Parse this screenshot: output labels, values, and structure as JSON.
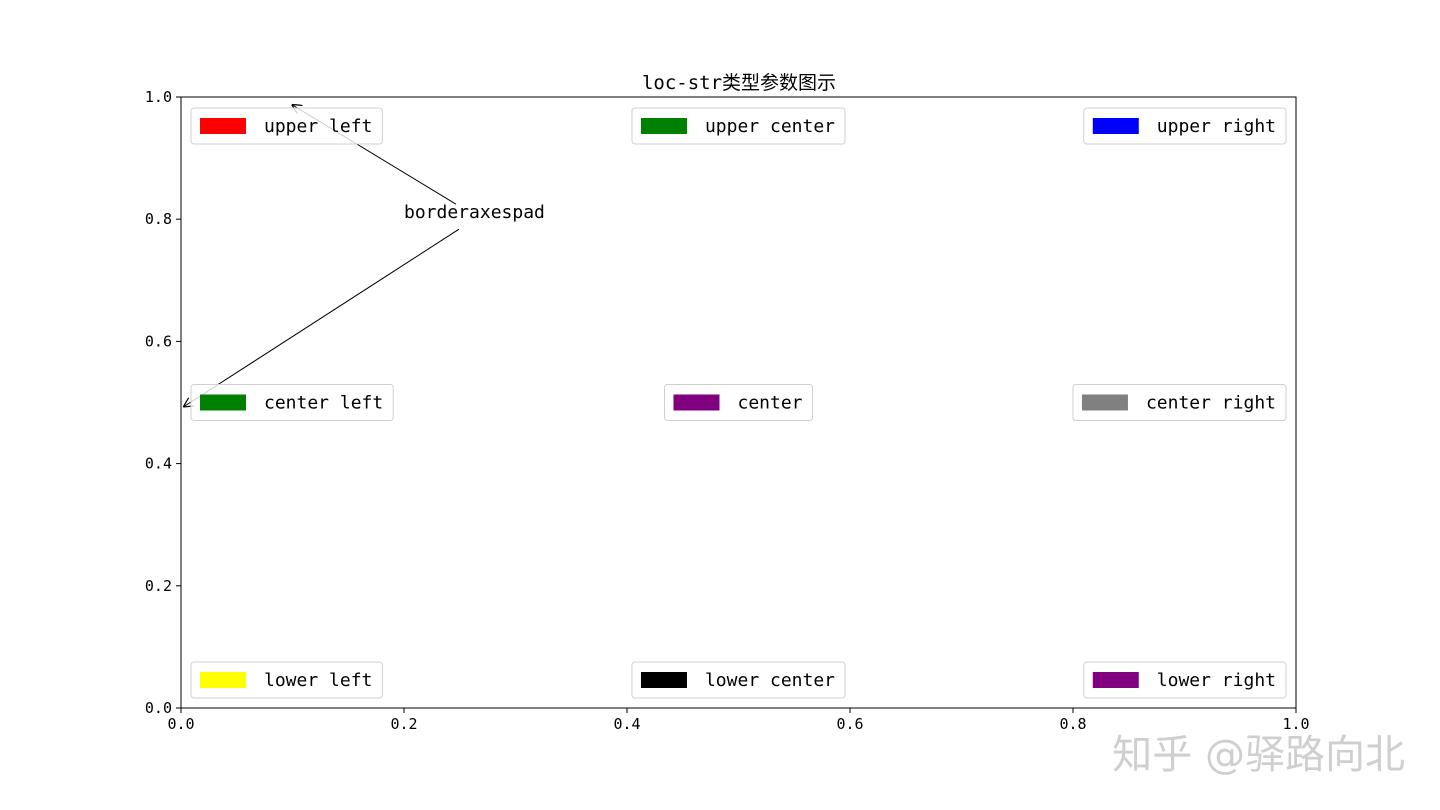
{
  "chart_data": {
    "type": "legend-demo",
    "title": "loc-str类型参数图示",
    "xlim": [
      0.0,
      1.0
    ],
    "ylim": [
      0.0,
      1.0
    ],
    "x_ticks": [
      "0.0",
      "0.2",
      "0.4",
      "0.6",
      "0.8",
      "1.0"
    ],
    "y_ticks": [
      "0.0",
      "0.2",
      "0.4",
      "0.6",
      "0.8",
      "1.0"
    ],
    "grid": false,
    "legends": [
      {
        "loc": "upper left",
        "label": "upper left",
        "color": "#ff0000"
      },
      {
        "loc": "upper center",
        "label": "upper center",
        "color": "#008000"
      },
      {
        "loc": "upper right",
        "label": "upper right",
        "color": "#0000ff"
      },
      {
        "loc": "center left",
        "label": "center left",
        "color": "#008000"
      },
      {
        "loc": "center",
        "label": "center",
        "color": "#800080"
      },
      {
        "loc": "center right",
        "label": "center right",
        "color": "#808080"
      },
      {
        "loc": "lower left",
        "label": "lower left",
        "color": "#ffff00"
      },
      {
        "loc": "lower center",
        "label": "lower center",
        "color": "#000000"
      },
      {
        "loc": "lower right",
        "label": "lower right",
        "color": "#800080"
      }
    ],
    "annotation": {
      "text": "borderaxespad",
      "text_xy": [
        0.2,
        0.8
      ],
      "arrows_to": [
        [
          0.1,
          1.0
        ],
        [
          0.0,
          0.5
        ]
      ]
    }
  },
  "watermark": "知乎 @驿路向北"
}
